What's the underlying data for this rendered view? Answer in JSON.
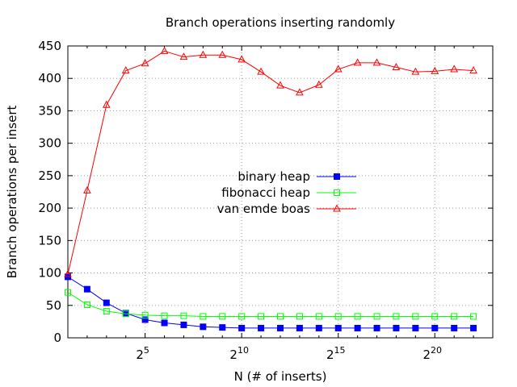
{
  "chart_data": {
    "type": "line",
    "title": "Branch operations inserting randomly",
    "xlabel": "N (# of inserts)",
    "ylabel": "Branch operations per insert",
    "x_scale": "log2",
    "xlim_exponent": [
      1,
      23
    ],
    "ylim": [
      0,
      450
    ],
    "x_ticks": [
      {
        "base": "2",
        "exp": "5",
        "exponent": 5
      },
      {
        "base": "2",
        "exp": "10",
        "exponent": 10
      },
      {
        "base": "2",
        "exp": "15",
        "exponent": 15
      },
      {
        "base": "2",
        "exp": "20",
        "exponent": 20
      }
    ],
    "y_ticks": [
      "0",
      "50",
      "100",
      "150",
      "200",
      "250",
      "300",
      "350",
      "400",
      "450"
    ],
    "grid": true,
    "legend_position": "center",
    "x_exponents": [
      1,
      2,
      3,
      4,
      5,
      6,
      7,
      8,
      9,
      10,
      11,
      12,
      13,
      14,
      15,
      16,
      17,
      18,
      19,
      20,
      21,
      22
    ],
    "series": [
      {
        "name": "binary heap",
        "color": "#0000ff",
        "marker": "filled-square",
        "values": [
          94,
          75,
          54,
          38,
          28,
          23,
          20,
          17,
          16,
          15,
          15,
          15,
          15,
          15,
          15,
          15,
          15,
          15,
          15,
          15,
          15,
          15
        ]
      },
      {
        "name": "fibonacci heap",
        "color": "#00ff00",
        "marker": "open-square",
        "values": [
          70,
          51,
          41,
          37,
          35,
          34,
          34,
          33,
          33,
          33,
          33,
          33,
          33,
          33,
          33,
          33,
          33,
          33,
          33,
          33,
          33,
          33
        ]
      },
      {
        "name": "van emde boas",
        "color": "#ff0000",
        "marker": "open-triangle",
        "values": [
          98,
          227,
          359,
          412,
          423,
          442,
          433,
          436,
          436,
          429,
          410,
          389,
          378,
          390,
          414,
          424,
          424,
          417,
          410,
          411,
          414,
          412
        ]
      }
    ]
  }
}
